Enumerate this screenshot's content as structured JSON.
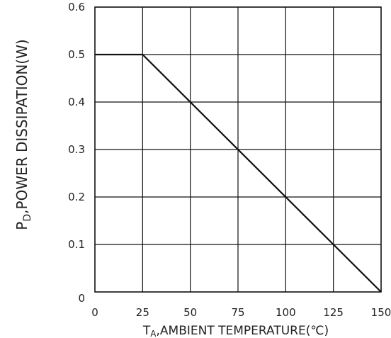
{
  "chart_data": {
    "type": "line",
    "title": "",
    "xlabel_prefix": "T",
    "xlabel_sub": "A",
    "xlabel_rest": ",AMBIENT TEMPERATURE(℃)",
    "ylabel_prefix": "P",
    "ylabel_sub": "D",
    "ylabel_rest": ",POWER DISSIPATION(W)",
    "xlim": [
      0,
      150
    ],
    "ylim": [
      0,
      0.6
    ],
    "x_ticks": [
      "0",
      "25",
      "50",
      "75",
      "100",
      "125",
      "150"
    ],
    "y_ticks": [
      "0",
      "0.1",
      "0.2",
      "0.3",
      "0.4",
      "0.5",
      "0.6"
    ],
    "grid": true,
    "series": [
      {
        "x": [
          0,
          25,
          150
        ],
        "y": [
          0.5,
          0.5,
          0
        ]
      }
    ]
  }
}
